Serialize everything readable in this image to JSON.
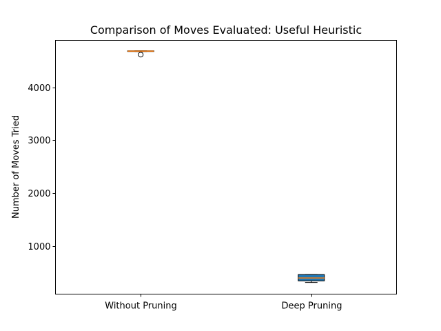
{
  "chart_data": {
    "type": "box",
    "title": "Comparison of Moves Evaluated: Useful Heuristic",
    "xlabel": "",
    "ylabel": "Number of Moves Tried",
    "ylim": [
      90,
      4890
    ],
    "yticks": [
      1000,
      2000,
      3000,
      4000
    ],
    "categories": [
      "Without Pruning",
      "Deep Pruning"
    ],
    "boxes": [
      {
        "category": "Without Pruning",
        "whisker_low": 4680,
        "q1": 4680,
        "median": 4686,
        "q3": 4692,
        "whisker_high": 4692,
        "outliers": [
          4620
        ],
        "fill": "#ffffff"
      },
      {
        "category": "Deep Pruning",
        "whisker_low": 310,
        "q1": 340,
        "median": 395,
        "q3": 460,
        "whisker_high": 460,
        "outliers": [],
        "fill": "#1f77b4"
      }
    ],
    "median_color": "#ff7f0e",
    "grid": false
  }
}
